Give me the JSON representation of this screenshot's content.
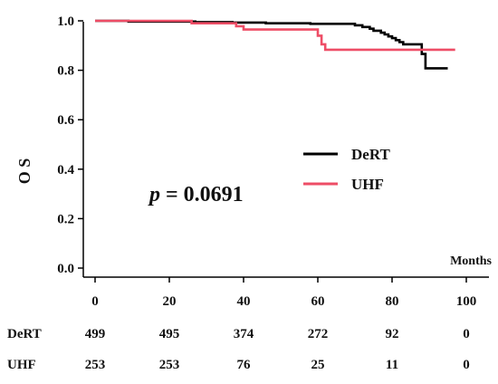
{
  "chart_data": {
    "type": "line",
    "ylabel": "O S",
    "xlabel_unit": "Months",
    "xlim": [
      0,
      100
    ],
    "ylim": [
      0.0,
      1.0
    ],
    "x_ticks": [
      0,
      20,
      40,
      60,
      80,
      100
    ],
    "y_ticks": [
      0.0,
      0.2,
      0.4,
      0.6,
      0.8,
      1.0
    ],
    "y_tick_labels": [
      "0.0",
      "0.2",
      "0.4",
      "0.6",
      "0.8",
      "1.0"
    ],
    "annotation": {
      "prefix": "p",
      "text": " = 0.0691"
    },
    "legend_position": "center-right",
    "series": [
      {
        "name": "DeRT",
        "color": "#000000",
        "points": [
          [
            0,
            1.0
          ],
          [
            9,
            1.0
          ],
          [
            9,
            0.997
          ],
          [
            27,
            0.997
          ],
          [
            27,
            0.995
          ],
          [
            37,
            0.995
          ],
          [
            37,
            0.993
          ],
          [
            46,
            0.993
          ],
          [
            46,
            0.99
          ],
          [
            58,
            0.99
          ],
          [
            58,
            0.988
          ],
          [
            70,
            0.988
          ],
          [
            70,
            0.982
          ],
          [
            72,
            0.982
          ],
          [
            72,
            0.975
          ],
          [
            74,
            0.975
          ],
          [
            74,
            0.968
          ],
          [
            75,
            0.968
          ],
          [
            75,
            0.96
          ],
          [
            77,
            0.96
          ],
          [
            77,
            0.952
          ],
          [
            78,
            0.952
          ],
          [
            78,
            0.945
          ],
          [
            79,
            0.945
          ],
          [
            79,
            0.937
          ],
          [
            80,
            0.937
          ],
          [
            80,
            0.93
          ],
          [
            81,
            0.93
          ],
          [
            81,
            0.922
          ],
          [
            82,
            0.922
          ],
          [
            82,
            0.914
          ],
          [
            83,
            0.914
          ],
          [
            83,
            0.905
          ],
          [
            88,
            0.905
          ],
          [
            88,
            0.866
          ],
          [
            89,
            0.866
          ],
          [
            89,
            0.808
          ],
          [
            95,
            0.808
          ]
        ]
      },
      {
        "name": "UHF",
        "color": "#ee4d66",
        "points": [
          [
            0,
            1.0
          ],
          [
            26,
            1.0
          ],
          [
            26,
            0.99
          ],
          [
            38,
            0.99
          ],
          [
            38,
            0.978
          ],
          [
            40,
            0.978
          ],
          [
            40,
            0.965
          ],
          [
            60,
            0.965
          ],
          [
            60,
            0.94
          ],
          [
            61,
            0.94
          ],
          [
            61,
            0.905
          ],
          [
            62,
            0.905
          ],
          [
            62,
            0.883
          ],
          [
            97,
            0.883
          ]
        ]
      }
    ],
    "risk_table": {
      "times": [
        0,
        20,
        40,
        60,
        80,
        100
      ],
      "rows": [
        {
          "label": "DeRT",
          "values": [
            "499",
            "495",
            "374",
            "272",
            "92",
            "0"
          ]
        },
        {
          "label": "UHF",
          "values": [
            "253",
            "253",
            "76",
            "25",
            "11",
            "0"
          ]
        }
      ]
    }
  }
}
